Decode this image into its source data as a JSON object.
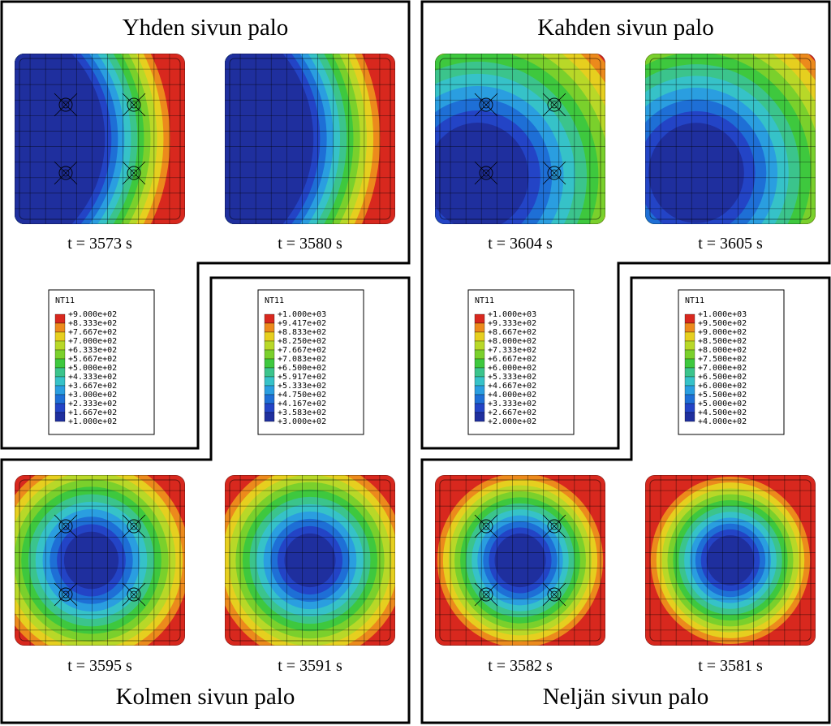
{
  "panels": [
    {
      "title": "Yhden sivun palo",
      "times": [
        "t = 3573 s",
        "t = 3580 s"
      ],
      "legend": {
        "title": "NT11",
        "labels": [
          "+9.000e+02",
          "+8.333e+02",
          "+7.667e+02",
          "+7.000e+02",
          "+6.333e+02",
          "+5.667e+02",
          "+5.000e+02",
          "+4.333e+02",
          "+3.667e+02",
          "+3.000e+02",
          "+2.333e+02",
          "+1.667e+02",
          "+1.000e+02"
        ]
      }
    },
    {
      "title": "Kahden sivun palo",
      "times": [
        "t = 3604 s",
        "t = 3605 s"
      ],
      "legend": {
        "title": "NT11",
        "labels": [
          "+1.000e+03",
          "+9.333e+02",
          "+8.667e+02",
          "+8.000e+02",
          "+7.333e+02",
          "+6.667e+02",
          "+6.000e+02",
          "+5.333e+02",
          "+4.667e+02",
          "+4.000e+02",
          "+3.333e+02",
          "+2.667e+02",
          "+2.000e+02"
        ]
      }
    },
    {
      "title": "Kolmen sivun palo",
      "times": [
        "t = 3595 s",
        "t = 3591 s"
      ],
      "legend": {
        "title": "NT11",
        "labels": [
          "+1.000e+03",
          "+9.417e+02",
          "+8.833e+02",
          "+8.250e+02",
          "+7.667e+02",
          "+7.083e+02",
          "+6.500e+02",
          "+5.917e+02",
          "+5.333e+02",
          "+4.750e+02",
          "+4.167e+02",
          "+3.583e+02",
          "+3.000e+02"
        ]
      }
    },
    {
      "title": "Neljän sivun palo",
      "times": [
        "t = 3582 s",
        "t = 3581 s"
      ],
      "legend": {
        "title": "NT11",
        "labels": [
          "+1.000e+03",
          "+9.500e+02",
          "+9.000e+02",
          "+8.500e+02",
          "+8.000e+02",
          "+7.500e+02",
          "+7.000e+02",
          "+6.500e+02",
          "+6.000e+02",
          "+5.500e+02",
          "+5.000e+02",
          "+4.500e+02",
          "+4.000e+02"
        ]
      }
    }
  ]
}
